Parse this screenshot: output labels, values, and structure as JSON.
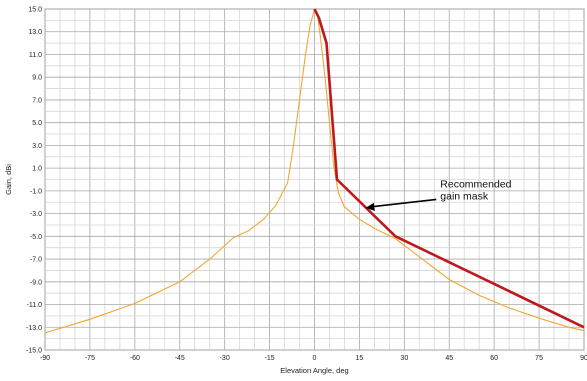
{
  "chart_data": {
    "type": "line",
    "xlabel": "Elevation Angle, deg",
    "ylabel": "Gain, dBi",
    "xlim": [
      -90,
      90
    ],
    "ylim": [
      -15,
      15
    ],
    "x_ticks": [
      -90,
      -75,
      -60,
      -45,
      -30,
      -15,
      0,
      15,
      30,
      45,
      60,
      75,
      90
    ],
    "y_ticks": [
      15,
      13,
      11,
      9,
      7,
      5,
      3,
      1,
      -1,
      -3,
      -5,
      -7,
      -9,
      -11,
      -13,
      -15
    ],
    "x_tick_labels": [
      "-90",
      "-75",
      "-60",
      "-45",
      "-30",
      "-15",
      "0",
      "15",
      "30",
      "45",
      "60",
      "75",
      "90"
    ],
    "y_tick_labels": [
      "15.0",
      "13.0",
      "11.0",
      "9.0",
      "7.0",
      "5.0",
      "3.0",
      "1.0",
      "-1.0",
      "-3.0",
      "-5.0",
      "-7.0",
      "-9.0",
      "-11.0",
      "-13.0",
      "-15.0"
    ],
    "grid": true,
    "series": [
      {
        "color": "#f0a830",
        "points": [
          [
            -90,
            -13.5
          ],
          [
            -75,
            -12.3
          ],
          [
            -60,
            -10.9
          ],
          [
            -45,
            -9.0
          ],
          [
            -35,
            -7.0
          ],
          [
            -27,
            -5.1
          ],
          [
            -22,
            -4.5
          ],
          [
            -17,
            -3.5
          ],
          [
            -13,
            -2.3
          ],
          [
            -9,
            -0.3
          ],
          [
            -7,
            3.0
          ],
          [
            -5,
            7.0
          ],
          [
            -3,
            11.0
          ],
          [
            -1.5,
            13.5
          ],
          [
            0,
            15.0
          ],
          [
            1,
            14.5
          ],
          [
            2,
            12.5
          ],
          [
            3.5,
            9.0
          ],
          [
            5,
            5.0
          ],
          [
            6.5,
            1.0
          ],
          [
            8,
            -1.2
          ],
          [
            10,
            -2.4
          ],
          [
            15,
            -3.5
          ],
          [
            20,
            -4.3
          ],
          [
            27,
            -5.2
          ],
          [
            35,
            -6.8
          ],
          [
            45,
            -8.8
          ],
          [
            55,
            -10.2
          ],
          [
            65,
            -11.3
          ],
          [
            75,
            -12.2
          ],
          [
            85,
            -13.0
          ],
          [
            90,
            -13.3
          ]
        ]
      },
      {
        "color": "#c0171c",
        "points": [
          [
            0,
            15.0
          ],
          [
            1.5,
            14.2
          ],
          [
            4,
            12.0
          ],
          [
            7.5,
            0.0
          ],
          [
            27,
            -5.0
          ],
          [
            90,
            -13.0
          ]
        ]
      }
    ],
    "annotation": {
      "text_lines": [
        "Recommended",
        "gain mask"
      ],
      "points_to": [
        17,
        -2.5
      ],
      "text_at": [
        42,
        -1.4
      ]
    }
  }
}
